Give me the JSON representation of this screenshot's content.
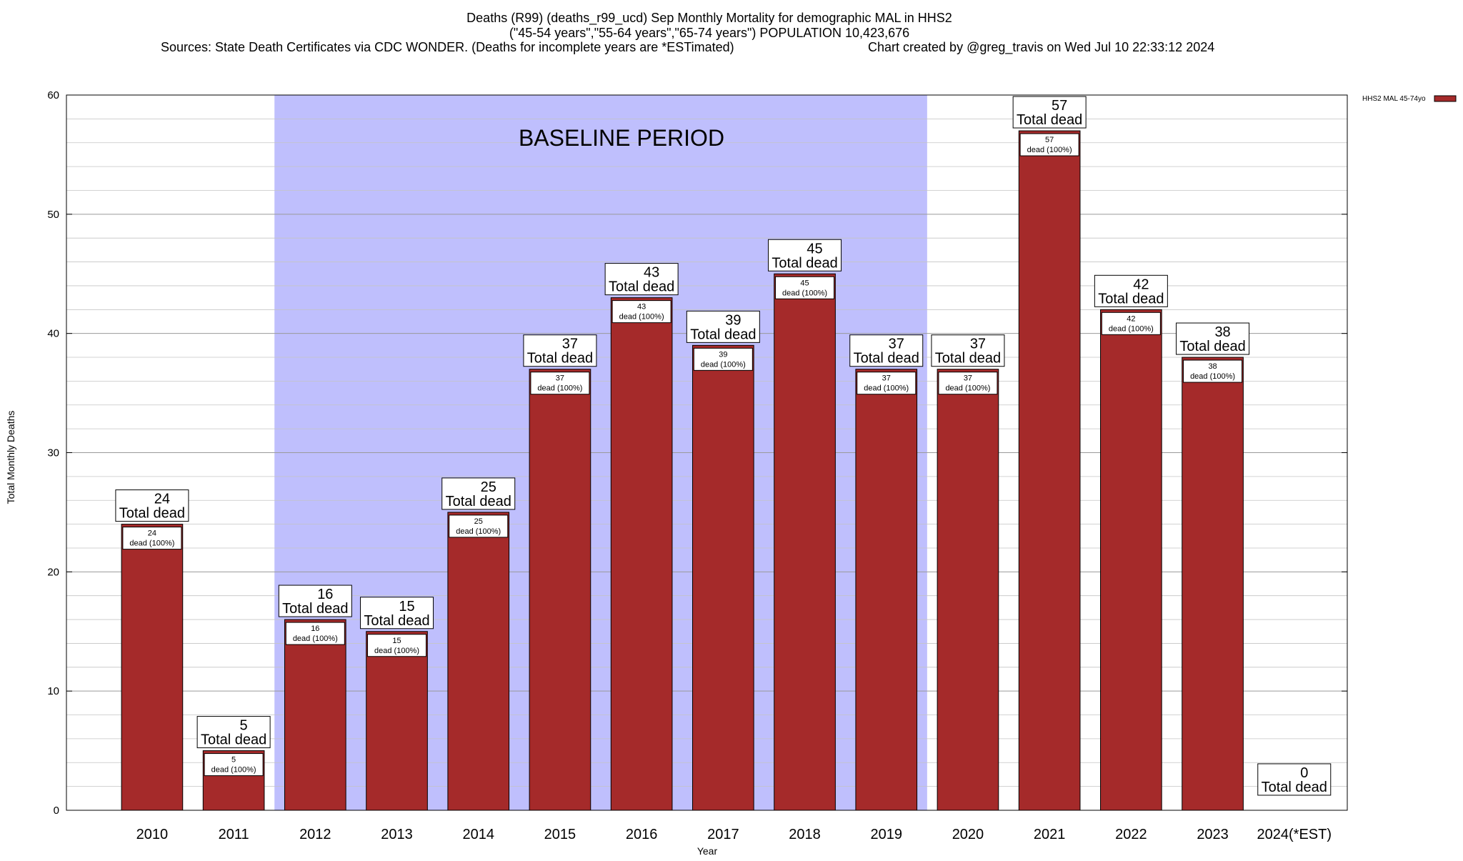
{
  "chart_data": {
    "type": "bar",
    "title_lines": [
      "Deaths (R99) (deaths_r99_ucd) Sep Monthly Mortality for demographic MAL in HHS2",
      "(\"45-54 years\",\"55-64 years\",\"65-74 years\") POPULATION 10,423,676"
    ],
    "sources": "Sources: State Death Certificates via CDC WONDER. (Deaths for incomplete years are *ESTimated)",
    "credit": "Chart created by @greg_travis on Wed Jul 10 22:33:12 2024",
    "xlabel": "Year",
    "ylabel": "Total Monthly Deaths",
    "ylim": [
      0,
      60
    ],
    "yticks": [
      0,
      10,
      20,
      30,
      40,
      50,
      60
    ],
    "categories": [
      "2010",
      "2011",
      "2012",
      "2013",
      "2014",
      "2015",
      "2016",
      "2017",
      "2018",
      "2019",
      "2020",
      "2021",
      "2022",
      "2023",
      "2024(*EST)"
    ],
    "series": [
      {
        "name": "HHS2 MAL 45-74yo",
        "color": "#a52a2a",
        "values": [
          24,
          5,
          16,
          15,
          25,
          37,
          43,
          39,
          45,
          37,
          37,
          57,
          42,
          38,
          0
        ]
      }
    ],
    "total_label_suffix": "Total dead",
    "inner_label_suffix": "dead (100%)",
    "baseline": {
      "label": "BASELINE PERIOD",
      "from_year": "2012",
      "to_year": "2019",
      "color": "#bfbffd"
    },
    "grid": true,
    "legend_placement": "top-right"
  }
}
